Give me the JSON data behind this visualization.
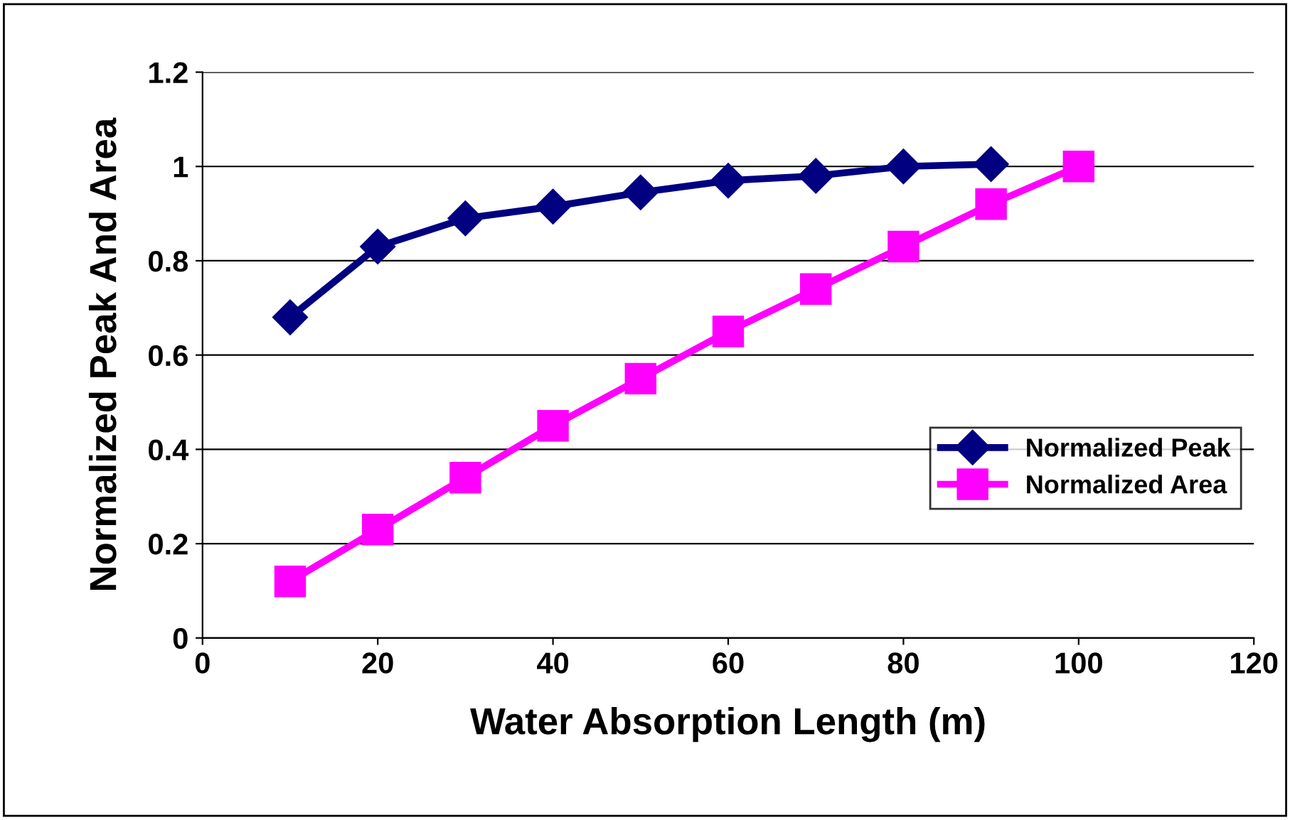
{
  "chart_data": {
    "type": "line",
    "xlabel": "Water Absorption Length (m)",
    "ylabel": "Normalized Peak And Area",
    "x": [
      10,
      20,
      30,
      40,
      50,
      60,
      70,
      80,
      90,
      100
    ],
    "series": [
      {
        "name": "Normalized Peak",
        "color": "#000080",
        "marker": "diamond",
        "values": [
          0.68,
          0.83,
          0.89,
          0.915,
          0.945,
          0.97,
          0.98,
          1.0,
          1.005,
          null
        ]
      },
      {
        "name": "Normalized Area",
        "color": "#ff00ff",
        "marker": "square",
        "values": [
          0.12,
          0.23,
          0.34,
          0.45,
          0.55,
          0.65,
          0.74,
          0.83,
          0.92,
          1.0
        ]
      }
    ],
    "xlim": [
      0,
      120
    ],
    "xticks": [
      0,
      20,
      40,
      60,
      80,
      100,
      120
    ],
    "ylim": [
      0,
      1.2
    ],
    "yticks": [
      0,
      0.2,
      0.4,
      0.6,
      0.8,
      1,
      1.2
    ],
    "grid": "y",
    "legend": "right",
    "line_style": "solid"
  }
}
